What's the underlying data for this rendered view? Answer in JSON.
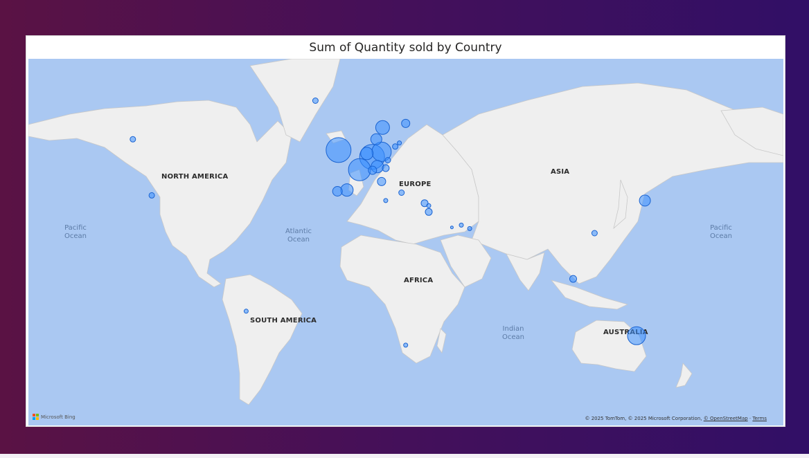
{
  "visual": {
    "title": "Sum of Quantity sold by Country"
  },
  "map": {
    "continent_labels": [
      "NORTH AMERICA",
      "SOUTH AMERICA",
      "EUROPE",
      "AFRICA",
      "ASIA",
      "AUSTRALIA"
    ],
    "ocean_labels": [
      {
        "line1": "Pacific",
        "line2": "Ocean"
      },
      {
        "line1": "Atlantic",
        "line2": "Ocean"
      },
      {
        "line1": "Indian",
        "line2": "Ocean"
      },
      {
        "line1": "Pacific",
        "line2": "Ocean"
      }
    ],
    "colors": {
      "water": "#aac8f2",
      "land": "#efefef",
      "bubble_fill": "#3a8fff",
      "bubble_stroke": "#1a63d1"
    }
  },
  "chart_data": {
    "type": "bubble-map",
    "title": "Sum of Quantity sold by Country",
    "measure": "Sum of Quantity sold",
    "points": [
      {
        "lat": 53.0,
        "lon": -8.0,
        "size": 18
      },
      {
        "lat": 51.0,
        "lon": 8.0,
        "size": 18
      },
      {
        "lat": 47.0,
        "lon": 2.0,
        "size": 16
      },
      {
        "lat": 52.5,
        "lon": 12.5,
        "size": 14
      },
      {
        "lat": 52.0,
        "lon": 5.5,
        "size": 9
      },
      {
        "lat": 48.0,
        "lon": 10.5,
        "size": 9
      },
      {
        "lat": 56.0,
        "lon": 10.0,
        "size": 8
      },
      {
        "lat": 59.0,
        "lon": 13.0,
        "size": 10
      },
      {
        "lat": 60.0,
        "lon": 24.0,
        "size": 6
      },
      {
        "lat": 65.0,
        "lon": -19.0,
        "size": 4
      },
      {
        "lat": 40.0,
        "lon": -4.0,
        "size": 9
      },
      {
        "lat": 39.5,
        "lon": -8.5,
        "size": 7
      },
      {
        "lat": 46.8,
        "lon": 8.2,
        "size": 6
      },
      {
        "lat": 43.0,
        "lon": 12.5,
        "size": 6
      },
      {
        "lat": 47.5,
        "lon": 14.5,
        "size": 5
      },
      {
        "lat": 50.0,
        "lon": 15.5,
        "size": 4
      },
      {
        "lat": 54.0,
        "lon": 19.0,
        "size": 4
      },
      {
        "lat": 55.0,
        "lon": 21.0,
        "size": 3
      },
      {
        "lat": 39.0,
        "lon": 22.0,
        "size": 4
      },
      {
        "lat": 36.0,
        "lon": 14.5,
        "size": 3
      },
      {
        "lat": 35.0,
        "lon": 33.0,
        "size": 5
      },
      {
        "lat": 34.0,
        "lon": 35.0,
        "size": 3
      },
      {
        "lat": 31.5,
        "lon": 35.0,
        "size": 5
      },
      {
        "lat": 25.0,
        "lon": 46.0,
        "size": 2
      },
      {
        "lat": 26.0,
        "lon": 50.5,
        "size": 3
      },
      {
        "lat": 24.5,
        "lon": 54.5,
        "size": 3
      },
      {
        "lat": 36.0,
        "lon": 138.0,
        "size": 8
      },
      {
        "lat": 22.5,
        "lon": 114.0,
        "size": 4
      },
      {
        "lat": 1.3,
        "lon": 103.8,
        "size": 5
      },
      {
        "lat": -25.0,
        "lon": 134.0,
        "size": 13
      },
      {
        "lat": -29.0,
        "lon": 24.0,
        "size": 3
      },
      {
        "lat": -14.0,
        "lon": -52.0,
        "size": 3
      },
      {
        "lat": 56.0,
        "lon": -106.0,
        "size": 4
      },
      {
        "lat": 38.0,
        "lon": -97.0,
        "size": 4
      }
    ]
  },
  "attribution": {
    "text": "© 2025 TomTom, © 2025 Microsoft Corporation,",
    "osm_link": "© OpenStreetMap",
    "terms_link": "Terms",
    "logo_text": "Microsoft Bing"
  }
}
